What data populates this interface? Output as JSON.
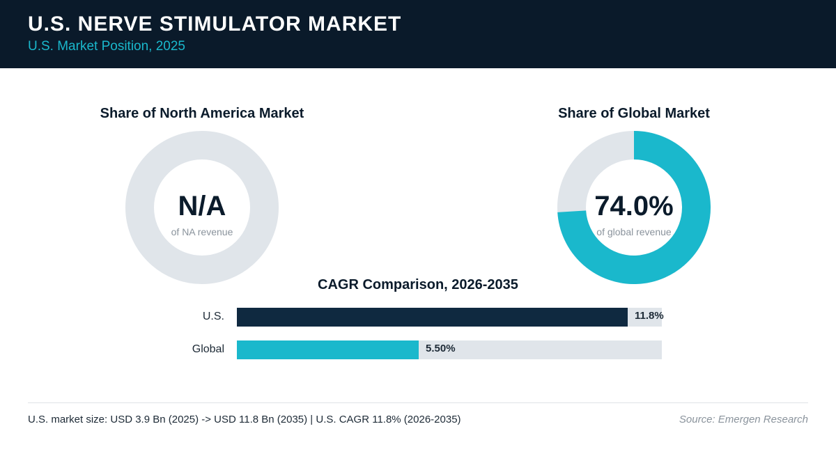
{
  "header": {
    "title": "U.S. NERVE STIMULATOR MARKET",
    "subtitle": "U.S. Market Position, 2025"
  },
  "colors": {
    "header_bg": "#0a1a2a",
    "accent": "#1ab8cc",
    "navy": "#0f2940",
    "track": "#e0e5ea"
  },
  "chart_data": [
    {
      "type": "pie",
      "title": "Share of North America Market",
      "center_value": "N/A",
      "center_label": "of NA revenue",
      "value": null
    },
    {
      "type": "pie",
      "title": "Share of Global Market",
      "center_value": "74.0%",
      "center_label": "of global revenue",
      "value": 74.0
    },
    {
      "type": "bar",
      "title": "CAGR Comparison, 2026-2035",
      "categories": [
        "U.S.",
        "Global"
      ],
      "values": [
        11.8,
        5.5
      ],
      "value_labels": [
        "11.8%",
        "5.50%"
      ],
      "xlim": [
        0,
        12.84
      ]
    }
  ],
  "footer": {
    "summary": "U.S. market size: USD 3.9 Bn (2025) -> USD 11.8 Bn (2035)  |  U.S. CAGR 11.8% (2026-2035)",
    "source": "Source: Emergen Research"
  }
}
